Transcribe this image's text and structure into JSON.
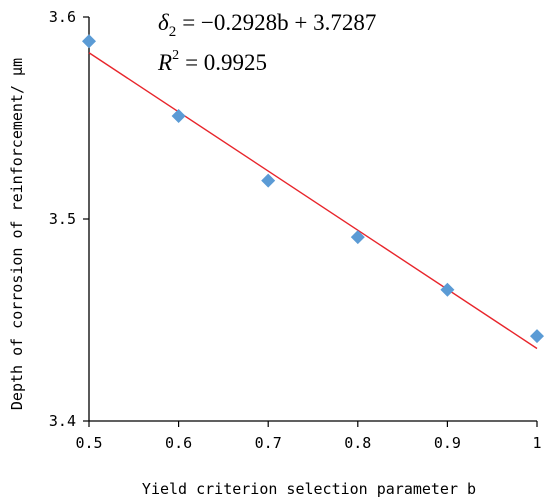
{
  "chart_data": {
    "type": "scatter",
    "title": "",
    "xlabel": "Yield criterion selection parameter b",
    "ylabel": "Depth of corrosion of reinforcement/ μm",
    "xlim": [
      0.5,
      1.0
    ],
    "ylim": [
      3.4,
      3.6
    ],
    "x_ticks": [
      0.5,
      0.6,
      0.7,
      0.8,
      0.9,
      1.0
    ],
    "x_tick_labels": [
      "0.5",
      "0.6",
      "0.7",
      "0.8",
      "0.9",
      "1"
    ],
    "y_ticks": [
      3.4,
      3.5,
      3.6
    ],
    "y_tick_labels": [
      "3.4",
      "3.5",
      "3.6"
    ],
    "grid": false,
    "series": [
      {
        "marker": "diamond",
        "color": "#5b9bd5",
        "x": [
          0.5,
          0.6,
          0.7,
          0.8,
          0.9,
          1.0
        ],
        "y": [
          3.588,
          3.551,
          3.519,
          3.491,
          3.465,
          3.442
        ]
      }
    ],
    "trendline": {
      "color": "#e8252b",
      "slope": -0.2928,
      "intercept": 3.7287,
      "x_range": [
        0.5,
        1.0
      ]
    },
    "annotations": {
      "equation": {
        "lhs_symbol": "δ",
        "lhs_sub": "2",
        "rhs": "= −0.2928b + 3.7287"
      },
      "r_squared": {
        "symbol": "R",
        "sup": "2",
        "rhs": "= 0.9925"
      }
    }
  }
}
